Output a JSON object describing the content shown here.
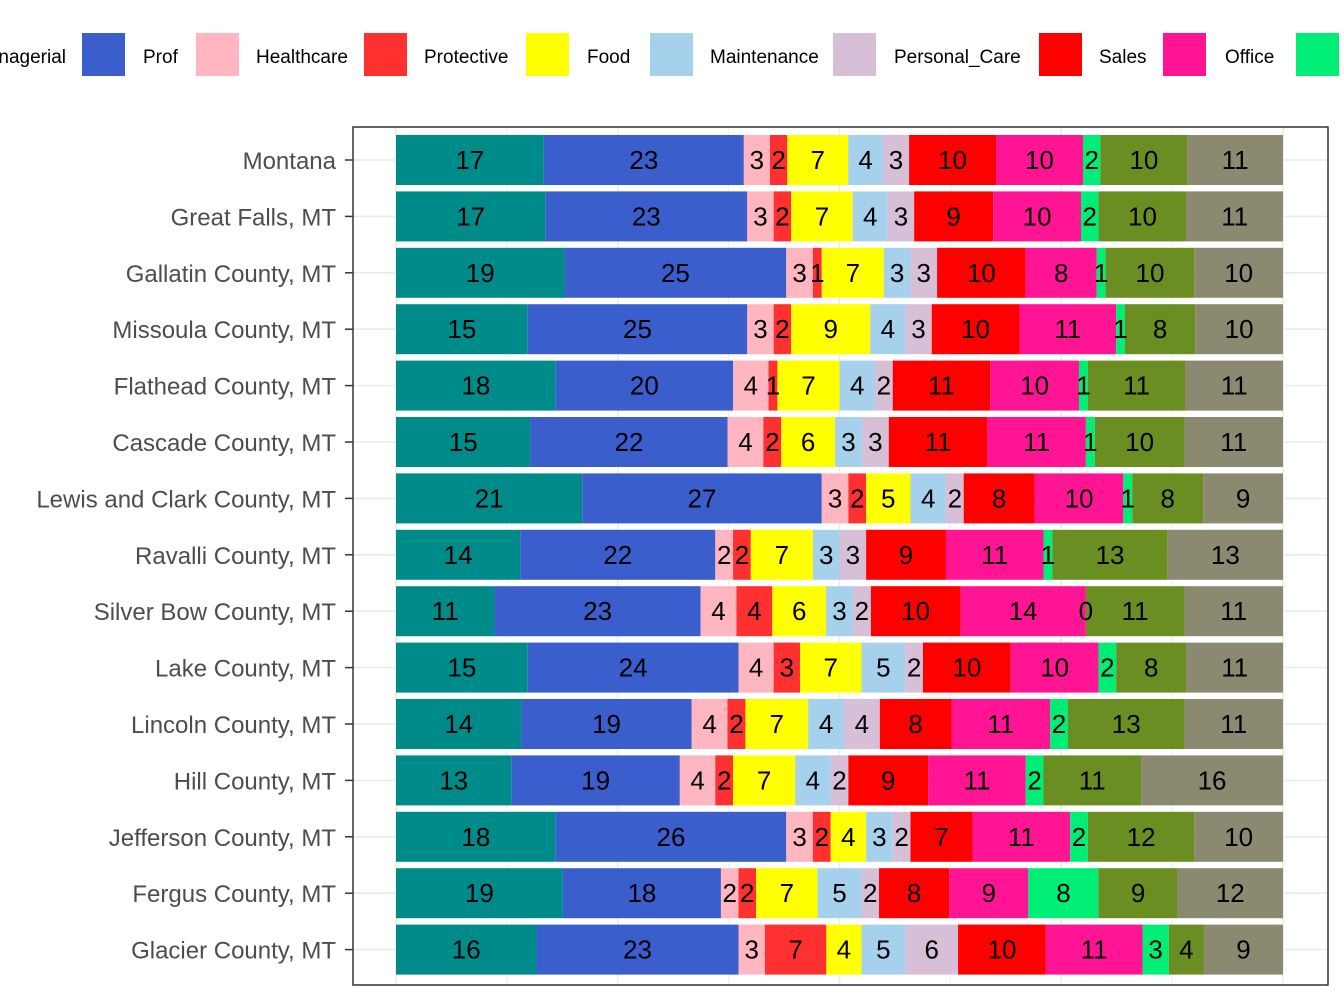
{
  "chart_data": {
    "type": "bar",
    "orientation": "horizontal",
    "stacked": true,
    "legend_position": "top",
    "grid": true,
    "xlim": [
      0,
      100
    ],
    "categories": [
      "Montana",
      "Great Falls, MT",
      "Gallatin County, MT",
      "Missoula County, MT",
      "Flathead County, MT",
      "Cascade County, MT",
      "Lewis and Clark County, MT",
      "Ravalli County, MT",
      "Silver Bow County, MT",
      "Lake County, MT",
      "Lincoln County, MT",
      "Hill County, MT",
      "Jefferson County, MT",
      "Fergus County, MT",
      "Glacier County, MT"
    ],
    "series": [
      {
        "name": "Managerial",
        "color": "#008B8B",
        "values": [
          17,
          17,
          19,
          15,
          18,
          15,
          21,
          14,
          11,
          15,
          14,
          13,
          18,
          19,
          16
        ]
      },
      {
        "name": "Prof",
        "color": "#3A5FCD",
        "values": [
          23,
          23,
          25,
          25,
          20,
          22,
          27,
          22,
          23,
          24,
          19,
          19,
          26,
          18,
          23
        ]
      },
      {
        "name": "Healthcare",
        "color": "#FFB6C1",
        "values": [
          3,
          3,
          3,
          3,
          4,
          4,
          3,
          2,
          4,
          4,
          4,
          4,
          3,
          2,
          3
        ]
      },
      {
        "name": "Protective",
        "color": "#FF3030",
        "values": [
          2,
          2,
          1,
          2,
          1,
          2,
          2,
          2,
          4,
          3,
          2,
          2,
          2,
          2,
          7
        ]
      },
      {
        "name": "Food",
        "color": "#FFFF00",
        "values": [
          7,
          7,
          7,
          9,
          7,
          6,
          5,
          7,
          6,
          7,
          7,
          7,
          4,
          7,
          4
        ]
      },
      {
        "name": "Maintenance",
        "color": "#A6D1ED",
        "values": [
          4,
          4,
          3,
          4,
          4,
          3,
          4,
          3,
          3,
          5,
          4,
          4,
          3,
          5,
          5
        ]
      },
      {
        "name": "Personal_Care",
        "color": "#D8BFD8",
        "values": [
          3,
          3,
          3,
          3,
          2,
          3,
          2,
          3,
          2,
          2,
          4,
          2,
          2,
          2,
          6
        ]
      },
      {
        "name": "Sales",
        "color": "#FF0000",
        "values": [
          10,
          9,
          10,
          10,
          11,
          11,
          8,
          9,
          10,
          10,
          8,
          9,
          7,
          8,
          10
        ]
      },
      {
        "name": "Office",
        "color": "#FF1493",
        "values": [
          10,
          10,
          8,
          11,
          10,
          11,
          10,
          11,
          14,
          10,
          11,
          11,
          11,
          9,
          11
        ]
      },
      {
        "name": "",
        "color": "#00EE76",
        "values": [
          2,
          2,
          1,
          1,
          1,
          1,
          1,
          1,
          0,
          2,
          2,
          2,
          2,
          8,
          3
        ]
      },
      {
        "name": "",
        "color": "#6B8E23",
        "values": [
          10,
          10,
          10,
          8,
          11,
          10,
          8,
          13,
          11,
          8,
          13,
          11,
          12,
          9,
          4
        ]
      },
      {
        "name": "",
        "color": "#8B8970",
        "values": [
          11,
          11,
          10,
          10,
          11,
          11,
          9,
          13,
          11,
          11,
          11,
          16,
          10,
          12,
          9
        ]
      }
    ],
    "legend_visible_text": [
      "nagerial",
      "Prof",
      "Healthcare",
      "Protective",
      "Food",
      "Maintenance",
      "Personal_Care",
      "Sales",
      "Office"
    ]
  }
}
